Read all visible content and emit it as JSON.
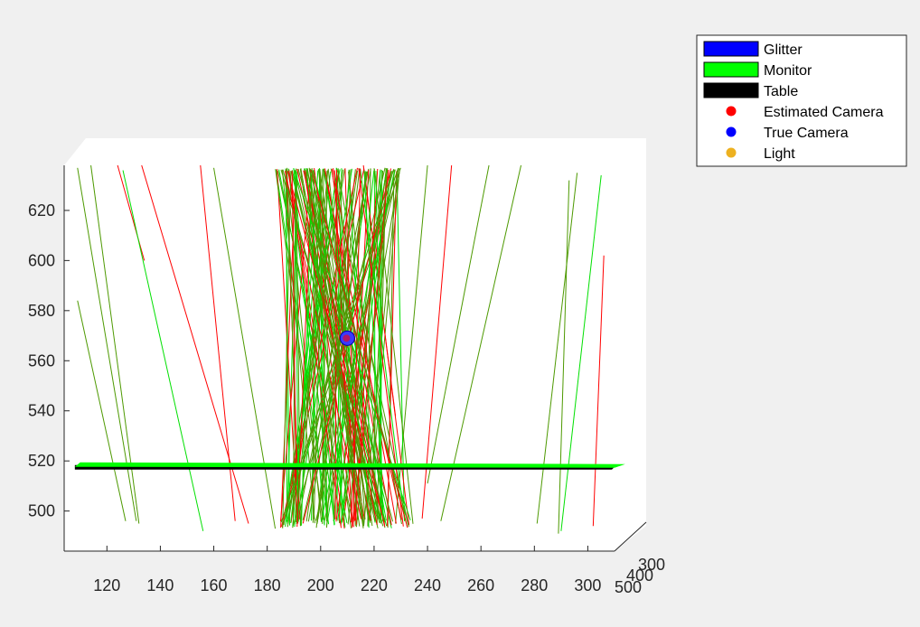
{
  "chart_data": {
    "type": "3d-line",
    "view": "side projection",
    "x_ticks": [
      "120",
      "140",
      "160",
      "180",
      "200",
      "220",
      "240",
      "260",
      "280",
      "300"
    ],
    "y_ticks": [
      "500",
      "520",
      "540",
      "560",
      "580",
      "600",
      "620"
    ],
    "depth_ticks": [
      "300",
      "400",
      "500"
    ],
    "xlim": [
      104,
      310
    ],
    "ylim": [
      484,
      638
    ],
    "grid": false,
    "legend_placement": "outside-top-right",
    "legend": [
      {
        "label": "Glitter",
        "kind": "patch",
        "color": "#0000ff"
      },
      {
        "label": "Monitor",
        "kind": "patch",
        "color": "#00ff00"
      },
      {
        "label": "Table",
        "kind": "patch",
        "color": "#000000"
      },
      {
        "label": "Estimated Camera",
        "kind": "dot",
        "color": "#ff0000"
      },
      {
        "label": "True Camera",
        "kind": "dot",
        "color": "#0000ff"
      },
      {
        "label": "Light",
        "kind": "dot",
        "color": "#edb120"
      }
    ],
    "camera_estimate": {
      "x": 210,
      "y": 569
    },
    "monitor_plane_y": 518,
    "ray_colors": {
      "green": "#00e000",
      "olive": "#4d9900",
      "red": "#ff0000"
    },
    "side_rays": [
      {
        "color": "olive",
        "x1": 109,
        "y1": 637,
        "x2": 131,
        "y2": 496
      },
      {
        "color": "olive",
        "x1": 114,
        "y1": 638,
        "x2": 132,
        "y2": 495
      },
      {
        "color": "olive",
        "x1": 109,
        "y1": 584,
        "x2": 127,
        "y2": 496
      },
      {
        "color": "red",
        "x1": 124,
        "y1": 638,
        "x2": 134,
        "y2": 600
      },
      {
        "color": "green",
        "x1": 126,
        "y1": 636,
        "x2": 156,
        "y2": 492
      },
      {
        "color": "red",
        "x1": 133,
        "y1": 638,
        "x2": 173,
        "y2": 495
      },
      {
        "color": "red",
        "x1": 155,
        "y1": 638,
        "x2": 168,
        "y2": 496
      },
      {
        "color": "olive",
        "x1": 160,
        "y1": 637,
        "x2": 183,
        "y2": 493
      },
      {
        "color": "red",
        "x1": 216,
        "y1": 638,
        "x2": 228,
        "y2": 538
      },
      {
        "color": "olive",
        "x1": 240,
        "y1": 638,
        "x2": 228,
        "y2": 495
      },
      {
        "color": "red",
        "x1": 249,
        "y1": 638,
        "x2": 238,
        "y2": 497
      },
      {
        "color": "olive",
        "x1": 275,
        "y1": 638,
        "x2": 245,
        "y2": 496
      },
      {
        "color": "olive",
        "x1": 263,
        "y1": 638,
        "x2": 240,
        "y2": 511
      },
      {
        "color": "olive",
        "x1": 296,
        "y1": 635,
        "x2": 281,
        "y2": 495
      },
      {
        "color": "green",
        "x1": 305,
        "y1": 634,
        "x2": 290,
        "y2": 492
      },
      {
        "color": "olive",
        "x1": 293,
        "y1": 632,
        "x2": 289,
        "y2": 491
      },
      {
        "color": "red",
        "x1": 306,
        "y1": 602,
        "x2": 302,
        "y2": 494
      }
    ],
    "bundle": {
      "count": 150,
      "top_x_range": [
        183,
        230
      ],
      "bottom_x_range": [
        185,
        235
      ],
      "top_y": 637,
      "bottom_y": 493
    }
  }
}
